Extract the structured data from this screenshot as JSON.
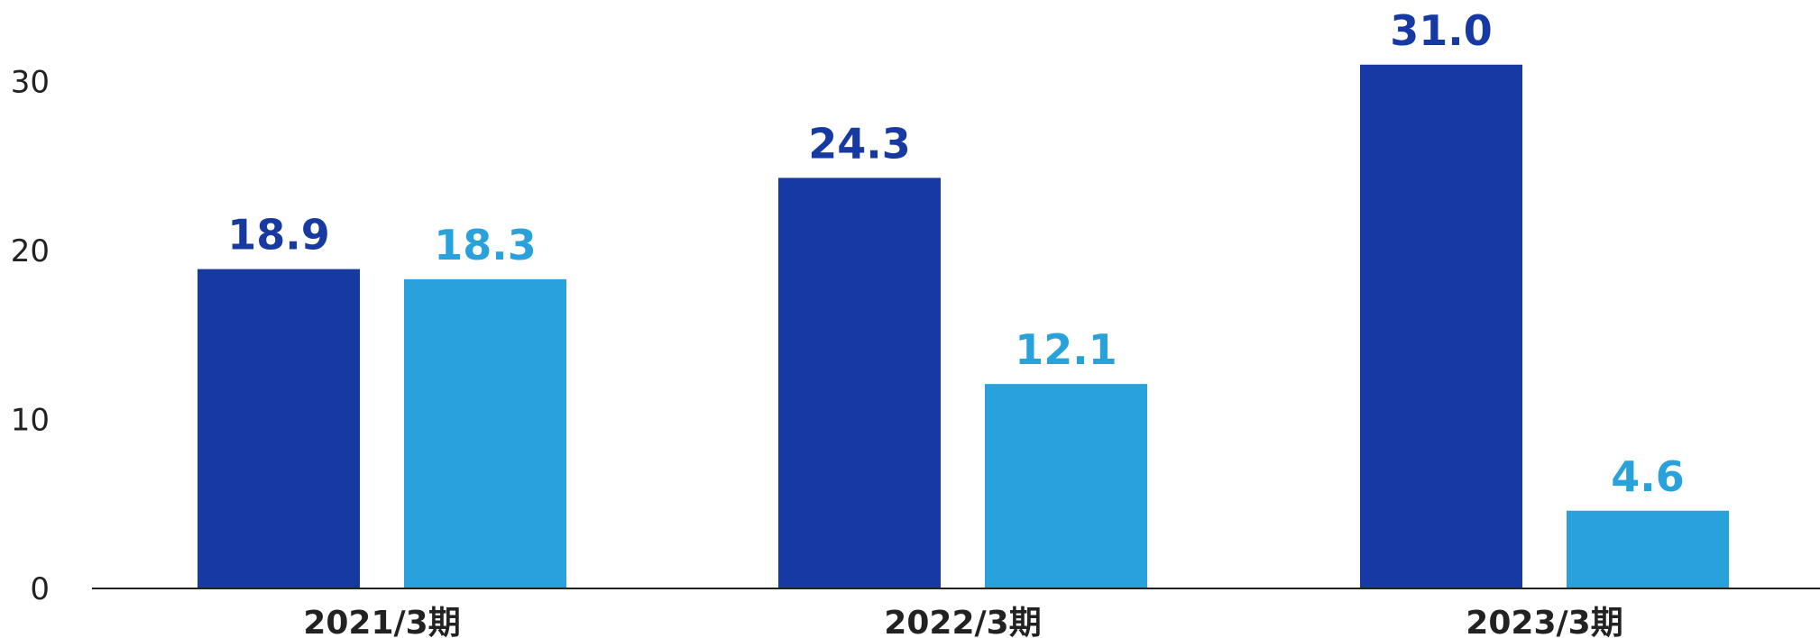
{
  "chart_data": {
    "type": "bar",
    "categories": [
      "2021/3期",
      "2022/3期",
      "2023/3期"
    ],
    "series": [
      {
        "values": [
          18.9,
          24.3,
          31.0
        ],
        "labels": [
          "18.9",
          "24.3",
          "31.0"
        ],
        "color": "#163aa1"
      },
      {
        "values": [
          18.3,
          12.1,
          4.6
        ],
        "labels": [
          "18.3",
          "12.1",
          "4.6"
        ],
        "color": "#29a2dc"
      }
    ],
    "yticks": [
      "0",
      "10",
      "20",
      "30"
    ],
    "ylim": [
      0,
      30
    ],
    "grid": false,
    "legend": "none",
    "title": "",
    "xlabel": "",
    "ylabel": ""
  }
}
